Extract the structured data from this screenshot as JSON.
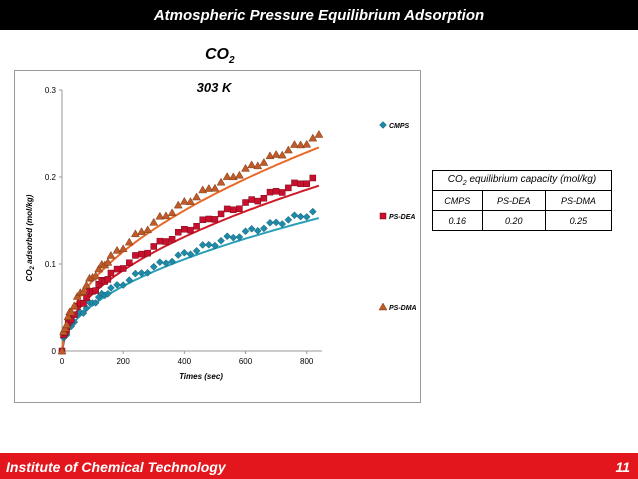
{
  "header": {
    "title": "Atmospheric Pressure Equilibrium Adsorption"
  },
  "gas": {
    "formula": "CO",
    "subscript": "2"
  },
  "chart_data": {
    "type": "scatter",
    "title": "303 K",
    "xlabel": "Times (sec)",
    "ylabel_main": "CO",
    "ylabel_sub": "2",
    "ylabel_rest": " adsorbed (mol/kg)",
    "xlim": [
      0,
      850
    ],
    "ylim": [
      0,
      0.3
    ],
    "xticks": [
      0,
      200,
      400,
      600,
      800
    ],
    "xtick_labels": [
      "0",
      "200",
      "400",
      "600",
      "800"
    ],
    "yticks": [
      0,
      0.1,
      0.2,
      0.3
    ],
    "ytick_labels": [
      "0",
      "0.1",
      "0.2",
      "0.3"
    ],
    "grid": false,
    "legend_position": "right",
    "colors": {
      "CMPS": "#1f8aa8",
      "PS-DEA": "#c8102e",
      "PS-DMA": "#c05a28",
      "fit": "#e86a2a",
      "fitCMPS": "#2aa0b8",
      "fitDEA": "#d01a2a"
    },
    "series": [
      {
        "name": "CMPS",
        "marker": "diamond",
        "scale": 0.00555,
        "x": [
          0,
          5,
          10,
          15,
          20,
          25,
          30,
          40,
          50,
          60,
          70,
          80,
          90,
          100,
          110,
          120,
          130,
          140,
          150,
          160,
          180,
          200,
          220,
          240,
          260,
          280,
          300,
          320,
          340,
          360,
          380,
          400,
          420,
          440,
          460,
          480,
          500,
          520,
          540,
          560,
          580,
          600,
          620,
          640,
          660,
          680,
          700,
          720,
          740,
          760,
          780,
          800,
          820
        ]
      },
      {
        "name": "PS-DEA",
        "marker": "square",
        "scale": 0.0069,
        "x": [
          0,
          5,
          10,
          15,
          20,
          25,
          30,
          40,
          50,
          60,
          70,
          80,
          90,
          100,
          110,
          120,
          130,
          140,
          150,
          160,
          180,
          200,
          220,
          240,
          260,
          280,
          300,
          320,
          340,
          360,
          380,
          400,
          420,
          440,
          460,
          480,
          500,
          520,
          540,
          560,
          580,
          600,
          620,
          640,
          660,
          680,
          700,
          720,
          740,
          760,
          780,
          800,
          820
        ]
      },
      {
        "name": "PS-DMA",
        "marker": "triangle",
        "scale": 0.0085,
        "x": [
          0,
          5,
          10,
          15,
          20,
          25,
          30,
          40,
          50,
          60,
          70,
          80,
          90,
          100,
          110,
          120,
          130,
          140,
          150,
          160,
          180,
          200,
          220,
          240,
          260,
          280,
          300,
          320,
          340,
          360,
          380,
          400,
          420,
          440,
          460,
          480,
          500,
          520,
          540,
          560,
          580,
          600,
          620,
          640,
          660,
          680,
          700,
          720,
          740,
          760,
          780,
          800,
          820,
          840
        ]
      }
    ],
    "legend": [
      "CMPS",
      "PS-DEA",
      "PS-DMA"
    ]
  },
  "table": {
    "title_main": "CO",
    "title_sub": "2",
    "title_rest": " equilibrium capacity (mol/kg)",
    "headers": [
      "CMPS",
      "PS-DEA",
      "PS-DMA"
    ],
    "values": [
      "0.16",
      "0.20",
      "0.25"
    ]
  },
  "footer": {
    "institute": "Institute of Chemical Technology",
    "page": "11"
  }
}
